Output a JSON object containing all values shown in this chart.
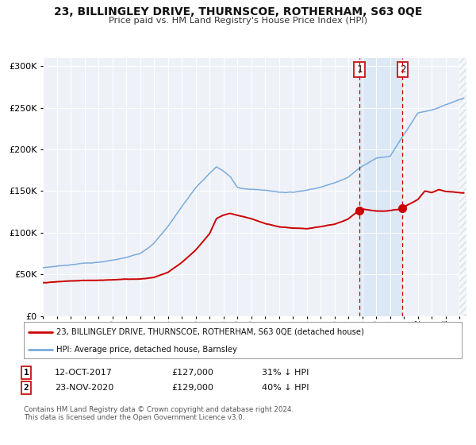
{
  "title": "23, BILLINGLEY DRIVE, THURNSCOE, ROTHERHAM, S63 0QE",
  "subtitle": "Price paid vs. HM Land Registry's House Price Index (HPI)",
  "legend_line1": "23, BILLINGLEY DRIVE, THURNSCOE, ROTHERHAM, S63 0QE (detached house)",
  "legend_line2": "HPI: Average price, detached house, Barnsley",
  "annotation1_label": "1",
  "annotation1_date": "12-OCT-2017",
  "annotation1_price": "£127,000",
  "annotation1_hpi": "31% ↓ HPI",
  "annotation1_year": 2017.78,
  "annotation1_value": 127000,
  "annotation2_label": "2",
  "annotation2_date": "23-NOV-2020",
  "annotation2_price": "£129,000",
  "annotation2_hpi": "40% ↓ HPI",
  "annotation2_year": 2020.9,
  "annotation2_value": 129000,
  "red_line_color": "#cc0000",
  "blue_line_color": "#7aaadd",
  "background_color": "#eef2f8",
  "highlight_color": "#dce8f5",
  "footer": "Contains HM Land Registry data © Crown copyright and database right 2024.\nThis data is licensed under the Open Government Licence v3.0.",
  "ylim": [
    0,
    310000
  ],
  "xlim_start": 1995,
  "xlim_end": 2025.5,
  "hpi_waypoints_x": [
    1995,
    1996,
    1997,
    1998,
    1999,
    2000,
    2001,
    2002,
    2003,
    2004,
    2005,
    2006,
    2007,
    2007.5,
    2008,
    2008.5,
    2009,
    2010,
    2011,
    2012,
    2013,
    2014,
    2015,
    2016,
    2017,
    2018,
    2019,
    2020,
    2021,
    2022,
    2023,
    2024,
    2025.3
  ],
  "hpi_waypoints_y": [
    58000,
    60000,
    62000,
    64000,
    65000,
    67000,
    70000,
    75000,
    88000,
    108000,
    132000,
    155000,
    172000,
    180000,
    175000,
    168000,
    155000,
    153000,
    152000,
    150000,
    150000,
    153000,
    157000,
    162000,
    170000,
    183000,
    193000,
    195000,
    222000,
    248000,
    252000,
    258000,
    265000
  ],
  "red_waypoints_x": [
    1995,
    1996,
    1997,
    1998,
    1999,
    2000,
    2001,
    2002,
    2003,
    2004,
    2005,
    2006,
    2007,
    2007.5,
    2008,
    2008.5,
    2009,
    2010,
    2011,
    2012,
    2013,
    2014,
    2015,
    2016,
    2017,
    2017.78,
    2018,
    2019,
    2020,
    2020.9,
    2021,
    2022,
    2022.5,
    2023,
    2023.5,
    2024,
    2025.3
  ],
  "red_waypoints_y": [
    40000,
    41000,
    42000,
    42500,
    43000,
    44000,
    44500,
    45000,
    47000,
    53000,
    65000,
    80000,
    100000,
    118000,
    122000,
    124000,
    122000,
    118000,
    112000,
    108000,
    106000,
    105000,
    107000,
    110000,
    116000,
    127000,
    128500,
    126000,
    127000,
    129000,
    131000,
    140000,
    150000,
    148000,
    152000,
    150000,
    148000
  ]
}
